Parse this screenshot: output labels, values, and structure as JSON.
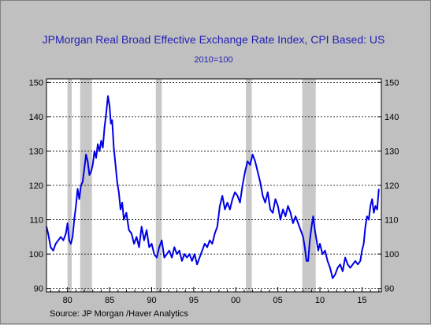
{
  "chart_data": {
    "type": "line",
    "title": "JPMorgan Real Broad Effective Exchange Rate Index, CPI Based: US",
    "subtitle": "2010=100",
    "source": "Source:  JP Morgan /Haver Analytics",
    "xlim": [
      1977.5,
      2017.3
    ],
    "ylim": [
      89,
      151
    ],
    "x_ticks": [
      {
        "value": 1980,
        "label": "80"
      },
      {
        "value": 1985,
        "label": "85"
      },
      {
        "value": 1990,
        "label": "90"
      },
      {
        "value": 1995,
        "label": "95"
      },
      {
        "value": 2000,
        "label": "00"
      },
      {
        "value": 2005,
        "label": "05"
      },
      {
        "value": 2010,
        "label": "10"
      },
      {
        "value": 2015,
        "label": "15"
      }
    ],
    "y_ticks": [
      90,
      100,
      110,
      120,
      130,
      140,
      150
    ],
    "grid": "horizontal dashed",
    "line_color": "#0000e6",
    "recession_color": "#c8c8c8",
    "recessions": [
      [
        1980.0,
        1980.5
      ],
      [
        1981.5,
        1982.9
      ],
      [
        1990.5,
        1991.2
      ],
      [
        2001.2,
        2001.9
      ],
      [
        2007.9,
        2009.5
      ]
    ],
    "series": [
      {
        "x": [
          1977.5,
          1977.7,
          1978.0,
          1978.3,
          1978.6,
          1978.9,
          1979.2,
          1979.5,
          1979.8,
          1980.0,
          1980.2,
          1980.4,
          1980.6,
          1980.8,
          1981.0,
          1981.2,
          1981.4,
          1981.6,
          1981.8,
          1982.0,
          1982.2,
          1982.4,
          1982.6,
          1982.8,
          1983.0,
          1983.2,
          1983.4,
          1983.6,
          1983.8,
          1984.0,
          1984.2,
          1984.4,
          1984.6,
          1984.8,
          1985.0,
          1985.15,
          1985.3,
          1985.5,
          1985.7,
          1985.9,
          1986.1,
          1986.3,
          1986.5,
          1986.7,
          1987.0,
          1987.3,
          1987.6,
          1987.9,
          1988.2,
          1988.5,
          1988.8,
          1989.1,
          1989.4,
          1989.7,
          1990.0,
          1990.3,
          1990.6,
          1990.9,
          1991.2,
          1991.5,
          1991.8,
          1992.1,
          1992.4,
          1992.7,
          1993.0,
          1993.3,
          1993.6,
          1993.9,
          1994.2,
          1994.5,
          1994.8,
          1995.1,
          1995.4,
          1995.7,
          1996.0,
          1996.3,
          1996.6,
          1996.9,
          1997.2,
          1997.5,
          1997.8,
          1998.1,
          1998.4,
          1998.7,
          1999.0,
          1999.3,
          1999.6,
          1999.9,
          2000.2,
          2000.5,
          2000.8,
          2001.1,
          2001.4,
          2001.7,
          2002.0,
          2002.3,
          2002.6,
          2002.9,
          2003.2,
          2003.5,
          2003.8,
          2004.1,
          2004.4,
          2004.7,
          2005.0,
          2005.3,
          2005.6,
          2005.9,
          2006.2,
          2006.5,
          2006.8,
          2007.1,
          2007.4,
          2007.7,
          2008.0,
          2008.2,
          2008.4,
          2008.6,
          2008.8,
          2009.0,
          2009.2,
          2009.4,
          2009.6,
          2009.8,
          2010.0,
          2010.3,
          2010.6,
          2010.9,
          2011.2,
          2011.5,
          2011.8,
          2012.1,
          2012.4,
          2012.7,
          2013.0,
          2013.3,
          2013.6,
          2013.9,
          2014.2,
          2014.5,
          2014.8,
          2015.0,
          2015.2,
          2015.4,
          2015.6,
          2015.8,
          2016.0,
          2016.2,
          2016.4,
          2016.6,
          2016.8,
          2017.0
        ],
        "y": [
          108,
          106,
          102,
          101,
          103,
          104,
          105,
          104,
          106,
          109,
          104,
          103,
          105,
          110,
          114,
          119,
          116,
          120,
          121,
          125,
          129,
          127,
          123,
          124,
          126,
          130,
          128,
          132,
          130,
          133,
          131,
          137,
          141,
          146,
          143,
          138,
          139,
          131,
          126,
          121,
          118,
          113,
          115,
          110,
          112,
          107,
          106,
          103,
          105,
          102,
          108,
          104,
          107,
          102,
          103,
          100,
          99,
          102,
          104,
          99,
          100,
          101,
          99,
          102,
          100,
          101,
          98,
          100,
          99,
          100,
          98,
          100,
          97,
          99,
          101,
          103,
          102,
          104,
          103,
          106,
          108,
          114,
          117,
          113,
          115,
          113,
          116,
          118,
          117,
          115,
          120,
          124,
          127,
          126,
          129,
          127,
          124,
          121,
          117,
          115,
          118,
          113,
          112,
          116,
          114,
          110,
          113,
          111,
          114,
          112,
          109,
          111,
          109,
          107,
          105,
          102,
          98,
          98,
          104,
          108,
          111,
          107,
          104,
          101,
          103,
          100,
          101,
          98,
          96,
          93,
          94,
          96,
          97,
          95,
          99,
          97,
          96,
          97,
          98,
          97,
          98,
          101,
          103,
          108,
          111,
          110,
          114,
          116,
          112,
          114,
          113,
          119
        ]
      }
    ]
  }
}
